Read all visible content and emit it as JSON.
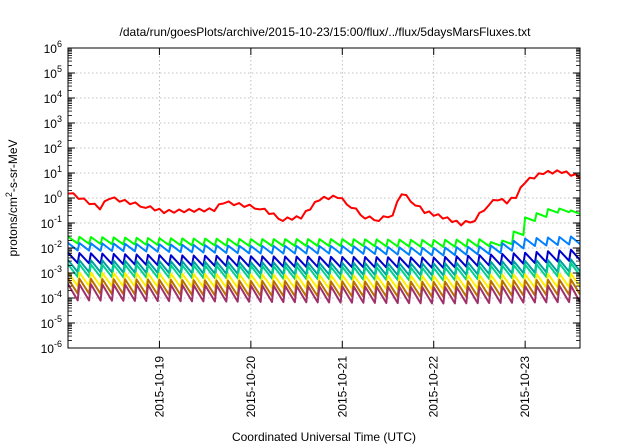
{
  "chart_data": {
    "type": "line",
    "title": "/data/run/goesPlots/archive/2015-10-23/15:00/flux/../flux/5daysMarsFluxes.txt",
    "xlabel": "Coordinated Universal Time (UTC)",
    "ylabel_parts": {
      "base": "protons/cm",
      "sup": "2",
      "rest": "-s-sr-MeV"
    },
    "yscale": "log",
    "ylim_exp": [
      -6,
      6
    ],
    "y_tick_base": "10",
    "y_tick_exponents": [
      "-6",
      "-5",
      "-4",
      "-3",
      "-2",
      "-1",
      "0",
      "1",
      "2",
      "3",
      "4",
      "5",
      "6"
    ],
    "x_day_range": [
      0,
      5.6
    ],
    "x_ticks": [
      {
        "day": 1,
        "label": "2015-10-19"
      },
      {
        "day": 2,
        "label": "2015-10-20"
      },
      {
        "day": 3,
        "label": "2015-10-21"
      },
      {
        "day": 4,
        "label": "2015-10-22"
      },
      {
        "day": 5,
        "label": "2015-10-23"
      }
    ],
    "grid": true,
    "series": [
      {
        "color": "#ff0000",
        "kind": "red",
        "x": [
          0.0,
          0.35,
          0.45,
          0.85,
          1.05,
          1.6,
          1.7,
          2.1,
          2.35,
          2.55,
          2.75,
          2.95,
          3.1,
          3.25,
          3.4,
          3.55,
          3.65,
          3.8,
          3.9,
          4.1,
          4.3,
          4.45,
          4.6,
          4.7,
          4.8,
          4.9,
          5.0,
          5.2,
          5.4,
          5.6
        ],
        "y": [
          1.5,
          0.35,
          0.9,
          0.4,
          0.25,
          0.3,
          0.6,
          0.35,
          0.12,
          0.15,
          0.8,
          1.0,
          0.4,
          0.15,
          0.12,
          0.2,
          1.4,
          0.5,
          0.25,
          0.15,
          0.08,
          0.12,
          0.5,
          0.8,
          0.6,
          1.0,
          4.0,
          9.0,
          10.0,
          6.0
        ]
      },
      {
        "color": "#00ff00",
        "kind": "teeth",
        "x": [
          0.0,
          1.0,
          2.0,
          3.0,
          4.0,
          4.6,
          4.8,
          5.0,
          5.3,
          5.6
        ],
        "y": [
          0.015,
          0.013,
          0.012,
          0.012,
          0.011,
          0.012,
          0.015,
          0.12,
          0.3,
          0.2
        ],
        "teeth_until": 4.6,
        "ratio": 1.9
      },
      {
        "color": "#0080ff",
        "kind": "teeth",
        "x": [
          0.0,
          1.0,
          2.0,
          3.0,
          4.0,
          4.6,
          5.0,
          5.6
        ],
        "y": [
          0.008,
          0.007,
          0.006,
          0.006,
          0.005,
          0.006,
          0.012,
          0.015
        ],
        "ratio": 2.0
      },
      {
        "color": "#0000cc",
        "kind": "teeth",
        "x": [
          0.0,
          1.0,
          2.0,
          3.0,
          4.0,
          5.0,
          5.6
        ],
        "y": [
          0.0025,
          0.002,
          0.0018,
          0.0017,
          0.0016,
          0.0025,
          0.0035
        ],
        "ratio": 2.6
      },
      {
        "color": "#00a0a0",
        "kind": "teeth",
        "x": [
          0.0,
          2.0,
          4.0,
          5.6
        ],
        "y": [
          0.0011,
          0.0009,
          0.0008,
          0.0012
        ],
        "ratio": 3.0
      },
      {
        "color": "#00d090",
        "kind": "teeth",
        "x": [
          0.0,
          2.0,
          4.0,
          5.6
        ],
        "y": [
          0.0007,
          0.0006,
          0.0005,
          0.0008
        ],
        "ratio": 3.2
      },
      {
        "color": "#ffee00",
        "kind": "teeth",
        "x": [
          0.0,
          2.0,
          4.0,
          5.6
        ],
        "y": [
          0.0003,
          0.00025,
          0.00022,
          0.00028
        ],
        "ratio": 3.5
      },
      {
        "color": "#b87000",
        "kind": "teeth",
        "x": [
          0.0,
          2.0,
          4.0,
          5.6
        ],
        "y": [
          0.00015,
          0.00012,
          0.00011,
          0.00014
        ],
        "ratio": 4.0
      },
      {
        "color": "#a0306a",
        "kind": "teeth",
        "x": [
          0.0,
          2.0,
          4.0,
          5.6
        ],
        "y": [
          8e-05,
          7e-05,
          6e-05,
          7e-05
        ],
        "ratio": 4.5
      }
    ]
  }
}
